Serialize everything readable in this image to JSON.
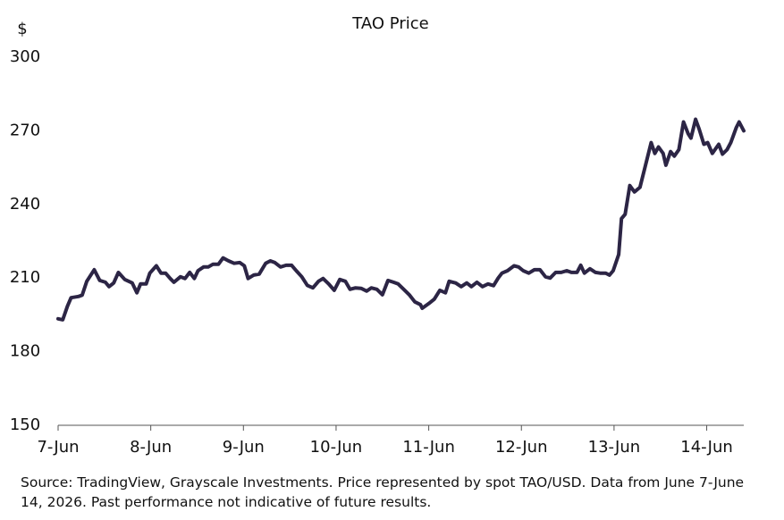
{
  "chart_data": {
    "type": "line",
    "title": "TAO Price",
    "y_label": "$",
    "source": "Source: TradingView, Grayscale Investments. Price represented by spot TAO/USD. Data from June 7-June 14, 2026. Past performance not indicative of future results.",
    "color": "#2c2545",
    "xlim": [
      0,
      7.4
    ],
    "ylim": [
      150,
      300
    ],
    "xticks": [
      {
        "value": 0,
        "label": "7-Jun"
      },
      {
        "value": 1,
        "label": "8-Jun"
      },
      {
        "value": 2,
        "label": "9-Jun"
      },
      {
        "value": 3,
        "label": "10-Jun"
      },
      {
        "value": 4,
        "label": "11-Jun"
      },
      {
        "value": 5,
        "label": "12-Jun"
      },
      {
        "value": 6,
        "label": "13-Jun"
      },
      {
        "value": 7,
        "label": "14-Jun"
      }
    ],
    "yticks": [
      150,
      180,
      210,
      240,
      270,
      300
    ],
    "x": [
      0,
      0.05,
      0.1,
      0.14,
      0.22,
      0.26,
      0.31,
      0.39,
      0.45,
      0.51,
      0.55,
      0.6,
      0.65,
      0.72,
      0.8,
      0.85,
      0.89,
      0.95,
      0.99,
      1.06,
      1.11,
      1.16,
      1.21,
      1.25,
      1.32,
      1.37,
      1.42,
      1.47,
      1.51,
      1.57,
      1.62,
      1.67,
      1.73,
      1.78,
      1.84,
      1.9,
      1.96,
      2.01,
      2.05,
      2.11,
      2.17,
      2.24,
      2.29,
      2.34,
      2.4,
      2.46,
      2.52,
      2.57,
      2.63,
      2.69,
      2.75,
      2.81,
      2.86,
      2.92,
      2.98,
      3.04,
      3.1,
      3.15,
      3.21,
      3.27,
      3.33,
      3.38,
      3.44,
      3.5,
      3.56,
      3.62,
      3.67,
      3.73,
      3.79,
      3.85,
      3.91,
      3.93,
      4.0,
      4.06,
      4.12,
      4.18,
      4.22,
      4.29,
      4.35,
      4.41,
      4.46,
      4.52,
      4.58,
      4.64,
      4.7,
      4.75,
      4.79,
      4.85,
      4.92,
      4.97,
      5.02,
      5.08,
      5.14,
      5.2,
      5.26,
      5.31,
      5.37,
      5.43,
      5.49,
      5.54,
      5.6,
      5.64,
      5.68,
      5.74,
      5.8,
      5.85,
      5.91,
      5.95,
      5.99,
      6.05,
      6.08,
      6.12,
      6.17,
      6.22,
      6.28,
      6.34,
      6.4,
      6.44,
      6.48,
      6.53,
      6.56,
      6.61,
      6.65,
      6.7,
      6.75,
      6.8,
      6.83,
      6.88,
      6.92,
      6.97,
      7.01,
      7.06,
      7.13,
      7.17,
      7.22,
      7.26,
      7.32,
      7.35,
      7.4
    ],
    "values": [
      193.4,
      193,
      198.5,
      202,
      202.5,
      203,
      208.7,
      213.4,
      209,
      208.3,
      206.5,
      208,
      212.3,
      209.4,
      208,
      204,
      207.6,
      207.6,
      212,
      215,
      212,
      212,
      209.8,
      208.3,
      210.5,
      209.8,
      212.3,
      209.8,
      213,
      214.5,
      214.5,
      215.6,
      215.6,
      218.2,
      217,
      216,
      216.3,
      215,
      209.8,
      211.2,
      211.6,
      216,
      217,
      216.3,
      214.5,
      215.2,
      215.2,
      213,
      210.5,
      207,
      206,
      208.7,
      209.8,
      207.6,
      205,
      209.4,
      208.7,
      205.4,
      206,
      205.8,
      204.7,
      206,
      205.4,
      203.2,
      209,
      208.3,
      207.6,
      205.4,
      203.2,
      200.3,
      199.2,
      197.7,
      199.6,
      201.4,
      205,
      204,
      208.7,
      208,
      206.5,
      208,
      206.5,
      208.3,
      206.5,
      207.6,
      206.9,
      210,
      212,
      213,
      215,
      214.5,
      213,
      212,
      213.4,
      213.4,
      210.5,
      210,
      212.3,
      212.3,
      213,
      212.3,
      212.3,
      215.2,
      212,
      213.8,
      212.3,
      212,
      212,
      211.2,
      213,
      219.6,
      234.2,
      236,
      247.7,
      245.1,
      247,
      256,
      265.2,
      260.8,
      263.4,
      260.8,
      256,
      261.5,
      259.7,
      262.3,
      273.6,
      268.8,
      267,
      274.7,
      270.6,
      264.5,
      265.2,
      260.8,
      264.5,
      260.5,
      262.3,
      265.2,
      271.4,
      273.6,
      270
    ]
  }
}
